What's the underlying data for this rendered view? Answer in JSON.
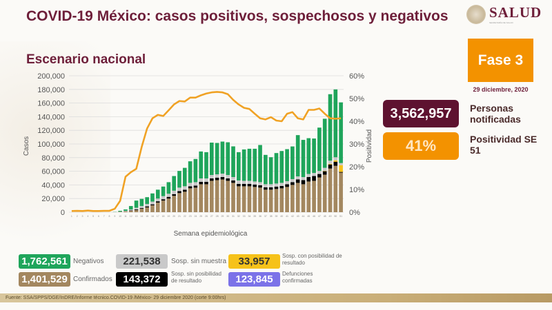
{
  "header": {
    "title": "COVID-19 México: casos positivos, sospechosos y negativos",
    "subtitle": "Escenario nacional",
    "logo_text": "SALUD",
    "logo_subtext": "SECRETARÍA DE SALUD"
  },
  "side": {
    "fase": "Fase 3",
    "fecha": "29 diciembre, 2020",
    "personas_value": "3,562,957",
    "personas_label": "Personas notificadas",
    "positividad_value": "41%",
    "positividad_label": "Positividad SE 51"
  },
  "legend": [
    {
      "value": "1,762,561",
      "label": "Negativos",
      "color": "#1fa55b"
    },
    {
      "value": "221,538",
      "label": "Sosp. sin muestra",
      "color": "#c9c9c9"
    },
    {
      "value": "33,957",
      "label": "Sosp. con posibilidad de resultado",
      "color": "#f6c21a"
    },
    {
      "value": "1,401,529",
      "label": "Confirmados",
      "color": "#a3875f"
    },
    {
      "value": "143,372",
      "label": "Sosp. sin posibilidad de resultado",
      "color": "#000000"
    },
    {
      "value": "123,845",
      "label": "Defunciones confirmadas",
      "color": "#7b72e8"
    }
  ],
  "footer": "Fuente: SSA/SPPS/DGE/InDRE/Informe técnico.COVID-19 /México- 29 diciembre 2020 (corte 9:00hrs)",
  "chart_data": {
    "type": "bar",
    "stacked": true,
    "xlabel": "Semana epidemiológica",
    "ylabel": "Casos",
    "y2label": "Positividad",
    "ylim": [
      0,
      200000
    ],
    "y2lim": [
      0,
      60
    ],
    "yticks": [
      "0",
      "20,000",
      "40,000",
      "60,000",
      "80,000",
      "100,000",
      "120,000",
      "140,000",
      "160,000",
      "180,000",
      "200,000"
    ],
    "y2ticks": [
      "0%",
      "10%",
      "20%",
      "30%",
      "40%",
      "50%",
      "60%"
    ],
    "grid": true,
    "categories": [
      1,
      2,
      3,
      4,
      5,
      6,
      7,
      8,
      9,
      10,
      11,
      12,
      13,
      14,
      15,
      16,
      17,
      18,
      19,
      20,
      21,
      22,
      23,
      24,
      25,
      26,
      27,
      28,
      29,
      30,
      31,
      32,
      33,
      34,
      35,
      36,
      37,
      38,
      39,
      40,
      41,
      42,
      43,
      44,
      45,
      46,
      47,
      48,
      49,
      50,
      51
    ],
    "series": [
      {
        "name": "Confirmados",
        "color": "#a3875f",
        "values": [
          0,
          0,
          0,
          0,
          0,
          0,
          0,
          0,
          100,
          500,
          1000,
          2000,
          3000,
          5000,
          7000,
          10000,
          14000,
          17000,
          20000,
          24000,
          28000,
          30000,
          35000,
          36000,
          41000,
          41000,
          46000,
          47000,
          48000,
          46000,
          43000,
          38000,
          38000,
          38000,
          37000,
          36000,
          33000,
          33000,
          34000,
          35000,
          37000,
          40000,
          43000,
          41000,
          45000,
          46000,
          51000,
          55000,
          64000,
          68000,
          58000
        ]
      },
      {
        "name": "Sosp. sin posibilidad de resultado",
        "color": "#000000",
        "values": [
          0,
          0,
          0,
          0,
          0,
          0,
          0,
          0,
          0,
          0,
          200,
          500,
          1000,
          1000,
          1500,
          1500,
          2000,
          2000,
          2500,
          2500,
          3000,
          3000,
          3000,
          3000,
          3500,
          3500,
          3500,
          3500,
          3500,
          3500,
          3500,
          3500,
          3500,
          3500,
          3500,
          3500,
          3500,
          3500,
          3500,
          3500,
          4000,
          4000,
          5000,
          6000,
          6500,
          7000,
          5000,
          5000,
          6000,
          6000,
          1000
        ]
      },
      {
        "name": "Sosp. con posibilidad de resultado",
        "color": "#f6c21a",
        "values": [
          0,
          0,
          0,
          0,
          0,
          0,
          0,
          0,
          0,
          0,
          0,
          0,
          0,
          0,
          0,
          0,
          0,
          0,
          0,
          0,
          0,
          0,
          0,
          0,
          0,
          0,
          0,
          0,
          0,
          0,
          0,
          0,
          0,
          0,
          0,
          0,
          0,
          0,
          0,
          0,
          0,
          0,
          0,
          0,
          0,
          0,
          0,
          500,
          1000,
          2000,
          10000
        ]
      },
      {
        "name": "Sosp. sin muestra",
        "color": "#c9c9c9",
        "values": [
          0,
          0,
          0,
          0,
          0,
          0,
          0,
          0,
          100,
          300,
          800,
          1500,
          2500,
          3000,
          3500,
          4000,
          4000,
          4500,
          4500,
          5000,
          5000,
          5000,
          5000,
          5000,
          5000,
          5000,
          5000,
          5000,
          5000,
          5000,
          5000,
          5000,
          4500,
          4500,
          4500,
          4500,
          4500,
          4500,
          4500,
          4500,
          4500,
          4500,
          4500,
          4500,
          4500,
          4500,
          4500,
          4500,
          4500,
          4500,
          3000
        ]
      },
      {
        "name": "Negativos",
        "color": "#1fa55b",
        "values": [
          0,
          0,
          0,
          0,
          0,
          0,
          0,
          0,
          300,
          1200,
          2000,
          5000,
          10500,
          10500,
          10000,
          12000,
          13000,
          14100,
          17000,
          21500,
          24500,
          27000,
          31600,
          34000,
          39500,
          38500,
          47500,
          46000,
          47000,
          48000,
          45000,
          41500,
          46000,
          47000,
          48000,
          54500,
          43000,
          39600,
          44700,
          46700,
          46900,
          47900,
          60500,
          54500,
          52500,
          50500,
          63500,
          72000,
          97500,
          99500,
          89000
        ]
      }
    ],
    "line": {
      "name": "Positividad",
      "axis": "right",
      "color": "#f0a224",
      "values": [
        0.5,
        0.6,
        0.5,
        0.7,
        0.5,
        0.5,
        0.6,
        0.6,
        1.5,
        5.0,
        15.6,
        17.6,
        19.1,
        28.7,
        36.8,
        41.3,
        42.8,
        42.3,
        44.8,
        47.4,
        48.9,
        48.7,
        50.4,
        50.4,
        51.4,
        52.2,
        52.7,
        52.9,
        52.7,
        51.9,
        49.4,
        47.4,
        45.9,
        45.4,
        43.3,
        41.3,
        40.8,
        41.8,
        40.3,
        40.0,
        43.3,
        44.0,
        41.3,
        40.8,
        45.0,
        45.0,
        45.6,
        43.3,
        41.3,
        41.1,
        41.3
      ]
    }
  }
}
